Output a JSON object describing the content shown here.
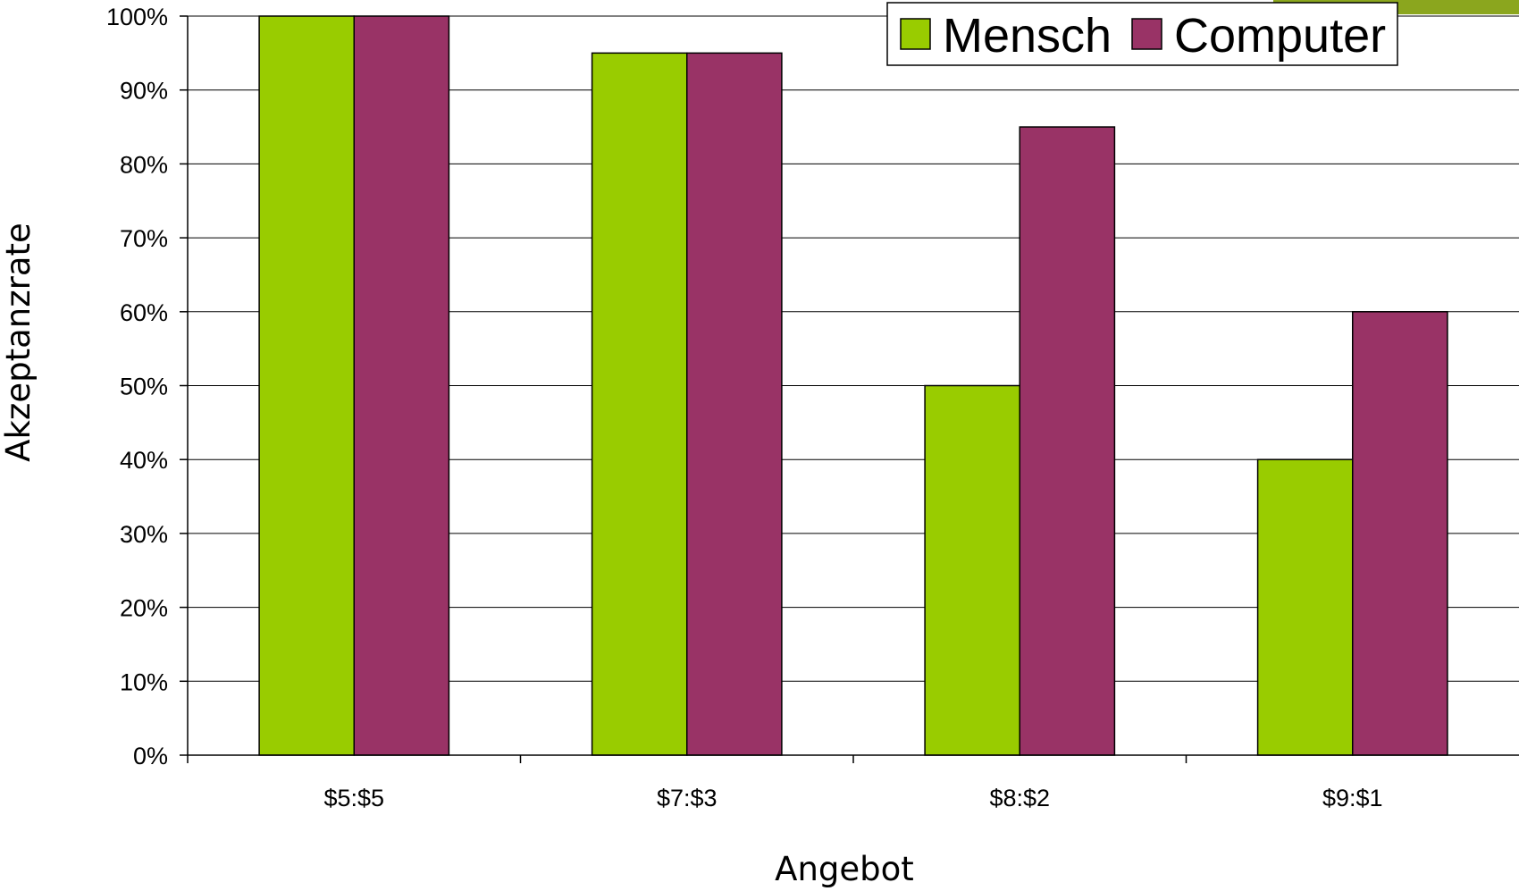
{
  "chart_data": {
    "type": "bar",
    "categories": [
      "$5:$5",
      "$7:$3",
      "$8:$2",
      "$9:$1"
    ],
    "series": [
      {
        "name": "Mensch",
        "values": [
          100,
          95,
          50,
          40
        ],
        "color": "#99CC00"
      },
      {
        "name": "Computer",
        "values": [
          100,
          95,
          85,
          60
        ],
        "color": "#993366"
      }
    ],
    "xlabel": "Angebot",
    "ylabel": "Akzeptanzrate",
    "ylim": [
      0,
      100
    ],
    "y_ticks": [
      "0%",
      "10%",
      "20%",
      "30%",
      "40%",
      "50%",
      "60%",
      "70%",
      "80%",
      "90%",
      "100%"
    ],
    "grid": true,
    "legend_position": "top-right",
    "accent_color": "#8BA61E"
  }
}
